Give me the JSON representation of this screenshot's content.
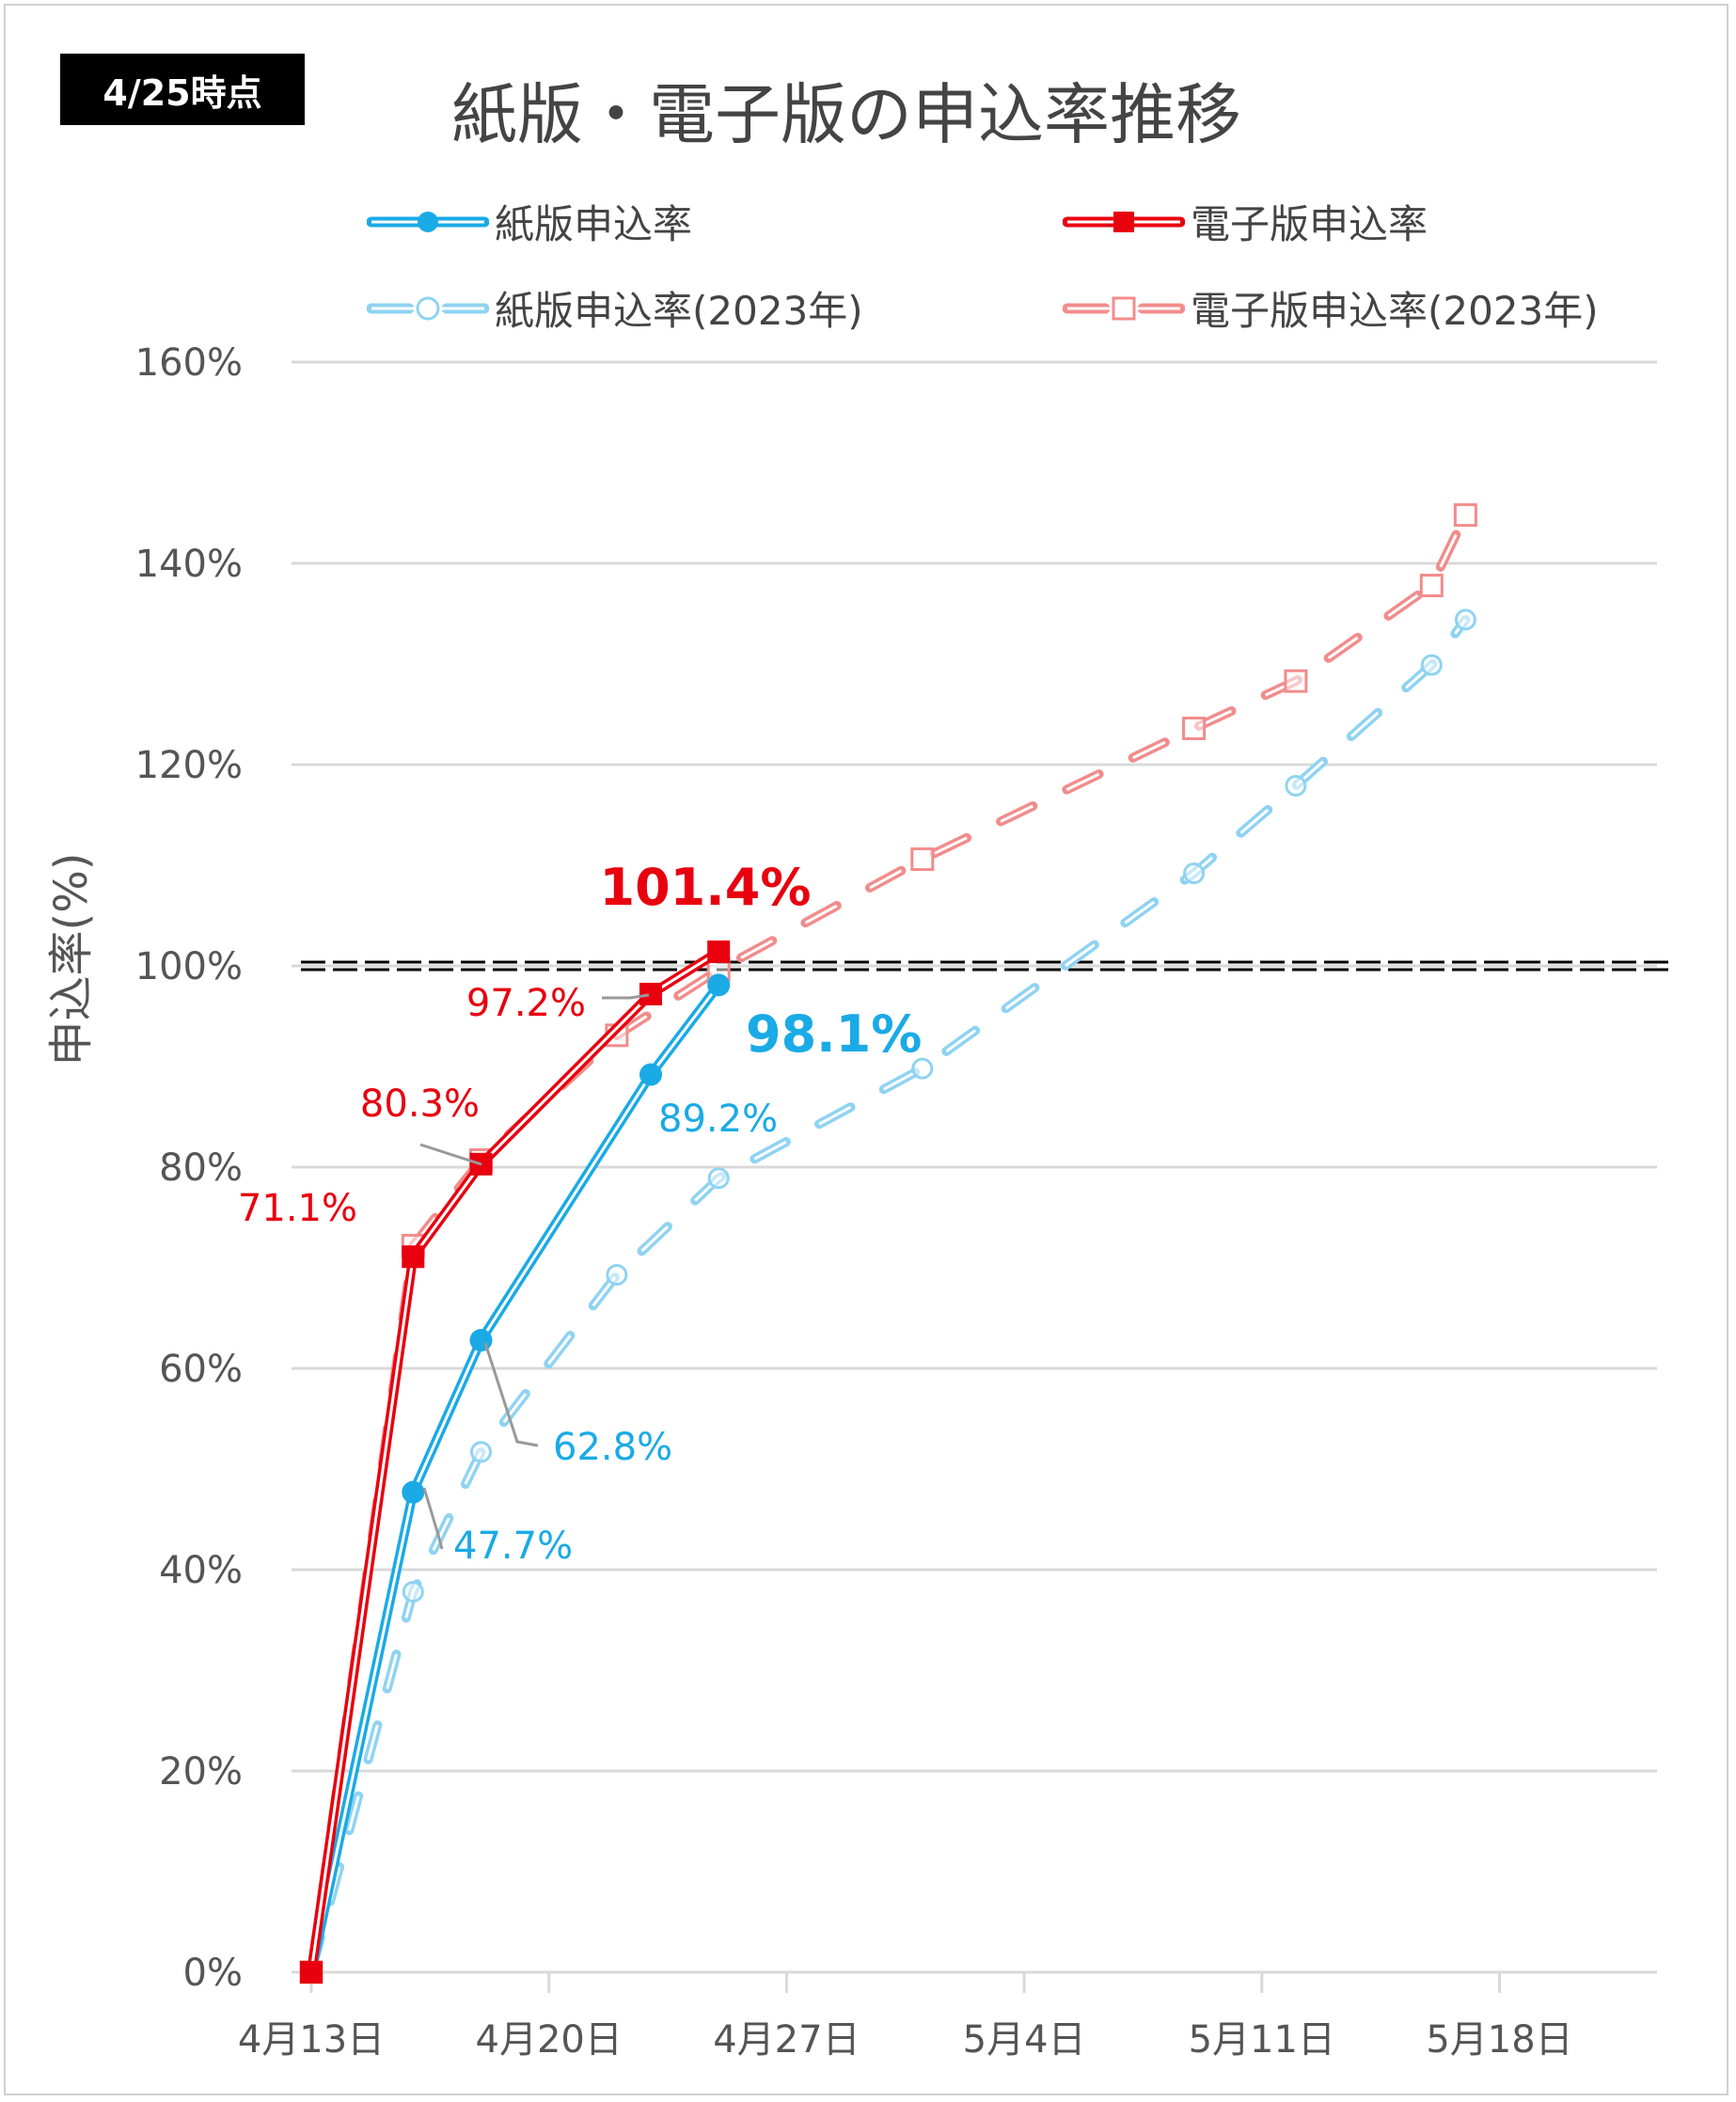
{
  "badge": "4/25時点",
  "colors": {
    "paper": "#1AAAE6",
    "paper2023": "#8FD3F2",
    "e": "#E8000F",
    "e2023": "#F28C8C",
    "grid": "#D9D9D9",
    "ref": "#000000"
  },
  "chart_data": {
    "type": "line",
    "title": "紙版・電子版の申込率推移",
    "xlabel": "",
    "ylabel": "申込率(%)",
    "ylim": [
      0,
      160
    ],
    "yticks": [
      0,
      20,
      40,
      60,
      80,
      100,
      120,
      140,
      160
    ],
    "ytick_labels": [
      "0%",
      "20%",
      "40%",
      "60%",
      "80%",
      "100%",
      "120%",
      "140%",
      "160%"
    ],
    "xlim_days": [
      0,
      40
    ],
    "xticks_days": [
      0,
      7,
      14,
      21,
      28,
      35
    ],
    "xtick_labels": [
      "4月13日",
      "4月20日",
      "4月27日",
      "5月4日",
      "5月11日",
      "5月18日"
    ],
    "grid": true,
    "legend_position": "top",
    "reference_line": {
      "y": 100,
      "style": "double-dashed"
    },
    "series": [
      {
        "name": "紙版申込率",
        "key": "paper",
        "marker": "circle-filled",
        "style": "double-solid",
        "x_days": [
          0,
          3,
          5,
          10,
          12
        ],
        "values": [
          0,
          47.7,
          62.8,
          89.2,
          98.1
        ]
      },
      {
        "name": "電子版申込率",
        "key": "e",
        "marker": "square-filled",
        "style": "double-solid",
        "x_days": [
          0,
          3,
          5,
          10,
          12
        ],
        "values": [
          0,
          71.1,
          80.3,
          97.2,
          101.4
        ]
      },
      {
        "name": "紙版申込率(2023年)",
        "key": "paper2023",
        "marker": "circle-open",
        "style": "double-dashed",
        "x_days": [
          0,
          3,
          5,
          9,
          12,
          18,
          26,
          29,
          33,
          34
        ],
        "values": [
          0,
          37.8,
          51.7,
          69.3,
          78.9,
          89.8,
          109.2,
          117.9,
          129.9,
          134.4
        ]
      },
      {
        "name": "電子版申込率(2023年)",
        "key": "e2023",
        "marker": "square-open",
        "style": "double-dashed",
        "x_days": [
          0,
          3,
          5,
          9,
          12,
          18,
          26,
          29,
          33,
          34
        ],
        "values": [
          0,
          72.2,
          80.7,
          93.1,
          99.6,
          110.6,
          123.6,
          128.3,
          137.8,
          144.8
        ]
      }
    ],
    "annotations": [
      {
        "text": "47.7%",
        "series": "paper"
      },
      {
        "text": "62.8%",
        "series": "paper"
      },
      {
        "text": "89.2%",
        "series": "paper"
      },
      {
        "text": "98.1%",
        "series": "paper",
        "emphasis": true
      },
      {
        "text": "71.1%",
        "series": "e"
      },
      {
        "text": "80.3%",
        "series": "e"
      },
      {
        "text": "97.2%",
        "series": "e"
      },
      {
        "text": "101.4%",
        "series": "e",
        "emphasis": true
      }
    ]
  }
}
